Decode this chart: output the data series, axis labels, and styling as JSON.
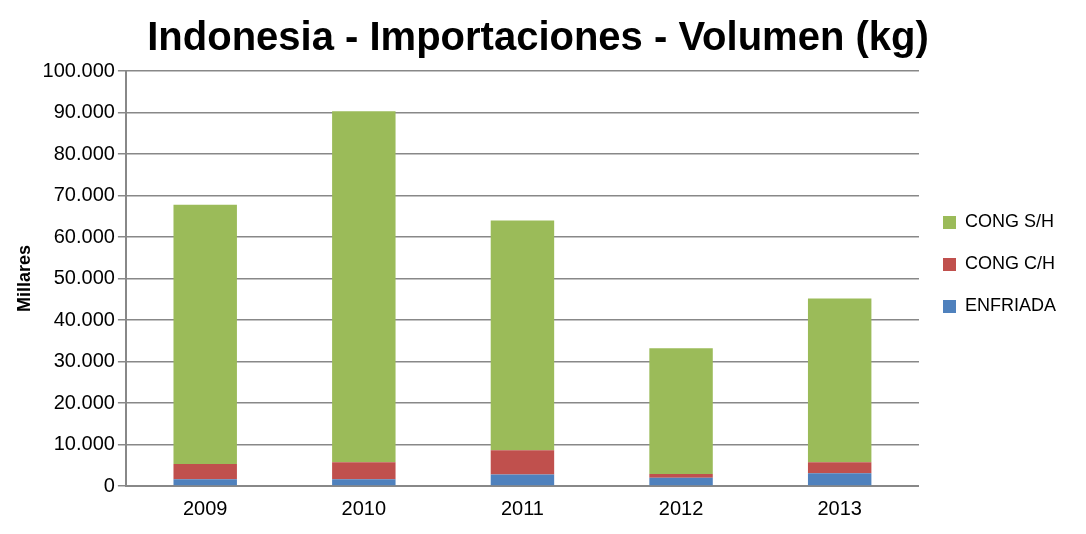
{
  "chart_data": {
    "type": "bar",
    "title": "Indonesia - Importaciones - Volumen (kg)",
    "ylabel": "Millares",
    "categories": [
      "2009",
      "2010",
      "2011",
      "2012",
      "2013"
    ],
    "stacked": true,
    "legend": "right",
    "grid": "y",
    "ylim": [
      0,
      100000
    ],
    "yticks": [
      {
        "value": 0,
        "label": "0"
      },
      {
        "value": 10000,
        "label": "10.000"
      },
      {
        "value": 20000,
        "label": "20.000"
      },
      {
        "value": 30000,
        "label": "30.000"
      },
      {
        "value": 40000,
        "label": "40.000"
      },
      {
        "value": 50000,
        "label": "50.000"
      },
      {
        "value": 60000,
        "label": "60.000"
      },
      {
        "value": 70000,
        "label": "70.000"
      },
      {
        "value": 80000,
        "label": "80.000"
      },
      {
        "value": 90000,
        "label": "90.000"
      },
      {
        "value": 100000,
        "label": "100.000"
      }
    ],
    "series": [
      {
        "name": "ENFRIADA",
        "color": "#4f81bd",
        "values": [
          1600,
          1600,
          2800,
          2000,
          3100
        ]
      },
      {
        "name": "CONG C/H",
        "color": "#c0504d",
        "values": [
          3700,
          4100,
          5800,
          900,
          2600
        ]
      },
      {
        "name": "CONG S/H",
        "color": "#9bbb59",
        "values": [
          62500,
          84600,
          55400,
          30300,
          39500
        ]
      }
    ]
  }
}
